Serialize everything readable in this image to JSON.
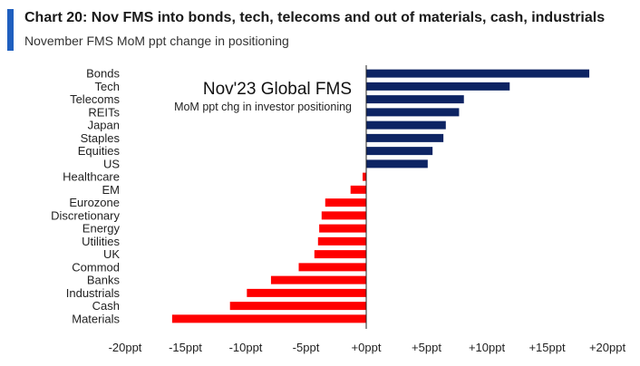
{
  "header": {
    "title": "Chart 20: Nov FMS into bonds, tech, telecoms and out of materials, cash, industrials",
    "subtitle": "November FMS MoM ppt change in positioning"
  },
  "chart_data": {
    "type": "bar",
    "orientation": "horizontal",
    "inset_title": "Nov'23 Global FMS",
    "inset_subtitle": "MoM ppt chg in investor positioning",
    "categories": [
      "Bonds",
      "Tech",
      "Telecoms",
      "REITs",
      "Japan",
      "Staples",
      "Equities",
      "US",
      "Healthcare",
      "EM",
      "Eurozone",
      "Discretionary",
      "Energy",
      "Utilities",
      "UK",
      "Commod",
      "Banks",
      "Industrials",
      "Cash",
      "Materials"
    ],
    "values": [
      18.5,
      11.9,
      8.1,
      7.7,
      6.6,
      6.4,
      5.5,
      5.1,
      -0.3,
      -1.3,
      -3.4,
      -3.7,
      -3.9,
      -4.0,
      -4.3,
      -5.6,
      -7.9,
      -9.9,
      -11.3,
      -16.1
    ],
    "xlim": [
      -20,
      20
    ],
    "ticks": [
      -20,
      -15,
      -10,
      -5,
      0,
      5,
      10,
      15,
      20
    ],
    "tick_labels": [
      "-20ppt",
      "-15ppt",
      "-10ppt",
      "-5ppt",
      "+0ppt",
      "+5ppt",
      "+10ppt",
      "+15ppt",
      "+20ppt"
    ],
    "positive_color": "#0d2463",
    "negative_color": "#ff0000",
    "grid": false,
    "legend": "none"
  }
}
